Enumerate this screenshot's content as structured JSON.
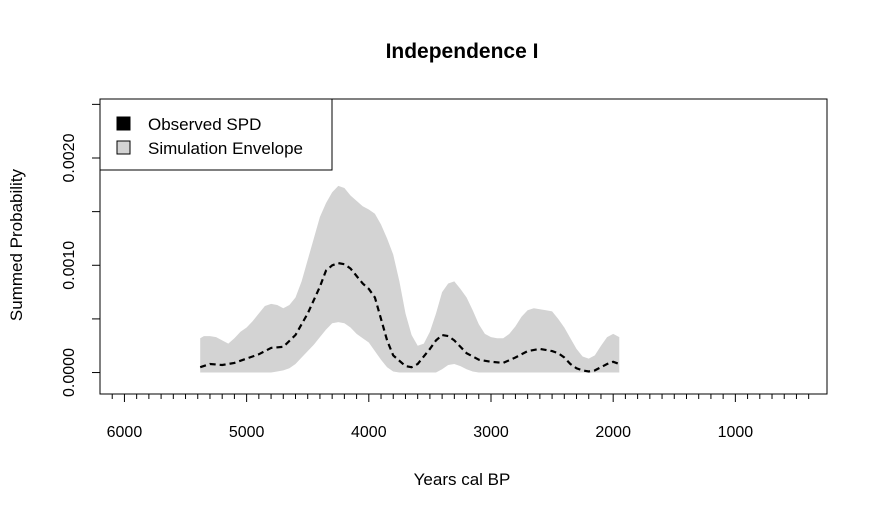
{
  "chart_data": {
    "type": "area",
    "title": "Independence I",
    "xlabel": "Years cal BP",
    "ylabel": "Summed Probability",
    "x_reversed": true,
    "xlim": [
      6200,
      250
    ],
    "ylim": [
      -0.0002,
      0.00255
    ],
    "x_major_ticks": [
      6000,
      5000,
      4000,
      3000,
      2000,
      1000
    ],
    "x_major_tick_labels": [
      "6000",
      "5000",
      "4000",
      "3000",
      "2000",
      "1000"
    ],
    "x_minor_ticks": [
      6100,
      5900,
      5800,
      5700,
      5600,
      5500,
      5400,
      5300,
      5200,
      5100,
      4900,
      4800,
      4700,
      4600,
      4500,
      4400,
      4300,
      4200,
      4100,
      3900,
      3800,
      3700,
      3600,
      3500,
      3400,
      3300,
      3200,
      3100,
      2900,
      2800,
      2700,
      2600,
      2500,
      2400,
      2300,
      2200,
      2100,
      1900,
      1800,
      1700,
      1600,
      1500,
      1400,
      1300,
      1200,
      1100,
      900,
      800,
      700,
      600,
      500,
      400
    ],
    "y_ticks": [
      0,
      0.0005,
      0.001,
      0.0015,
      0.002,
      0.0025
    ],
    "y_tick_labels": [
      "0.0000",
      "",
      "0.0010",
      "",
      "0.0020",
      ""
    ],
    "grid": false,
    "legend": {
      "position": "top-left",
      "entries": [
        {
          "label": "Observed SPD",
          "color": "#000000"
        },
        {
          "label": "Simulation Envelope",
          "color": "#d3d3d3"
        }
      ]
    },
    "series": [
      {
        "name": "Observed SPD",
        "style": "dashed",
        "color": "#000000",
        "x": [
          5380,
          5300,
          5200,
          5100,
          5000,
          4900,
          4800,
          4700,
          4600,
          4500,
          4400,
          4350,
          4300,
          4250,
          4200,
          4150,
          4100,
          4050,
          4000,
          3950,
          3900,
          3850,
          3800,
          3700,
          3650,
          3600,
          3500,
          3450,
          3400,
          3350,
          3300,
          3250,
          3200,
          3100,
          3000,
          2900,
          2800,
          2700,
          2600,
          2500,
          2450,
          2400,
          2350,
          2300,
          2250,
          2200,
          2150,
          2100,
          2050,
          2000,
          1950
        ],
        "y": [
          5e-05,
          8e-05,
          7e-05,
          9e-05,
          0.00013,
          0.00017,
          0.00023,
          0.00024,
          0.00035,
          0.00055,
          0.0008,
          0.00095,
          0.001,
          0.00102,
          0.00101,
          0.00097,
          0.0009,
          0.00083,
          0.00078,
          0.0007,
          0.0005,
          0.0003,
          0.00016,
          6e-05,
          5e-05,
          8e-05,
          0.00022,
          0.0003,
          0.00035,
          0.00034,
          0.0003,
          0.00024,
          0.00018,
          0.00012,
          0.0001,
          9e-05,
          0.00014,
          0.0002,
          0.00022,
          0.0002,
          0.00018,
          0.00014,
          8e-05,
          4e-05,
          2e-05,
          1e-05,
          2e-05,
          5e-05,
          8e-05,
          0.0001,
          8e-05
        ]
      },
      {
        "name": "Simulation Envelope",
        "style": "band",
        "color": "#d3d3d3",
        "x": [
          5380,
          5350,
          5300,
          5250,
          5200,
          5150,
          5100,
          5050,
          5000,
          4950,
          4900,
          4850,
          4800,
          4750,
          4700,
          4650,
          4600,
          4550,
          4500,
          4450,
          4400,
          4350,
          4300,
          4250,
          4200,
          4150,
          4100,
          4050,
          4000,
          3950,
          3900,
          3850,
          3800,
          3750,
          3700,
          3650,
          3600,
          3550,
          3500,
          3450,
          3400,
          3350,
          3300,
          3250,
          3200,
          3150,
          3100,
          3050,
          3000,
          2950,
          2900,
          2850,
          2800,
          2750,
          2700,
          2650,
          2600,
          2550,
          2500,
          2450,
          2400,
          2350,
          2300,
          2250,
          2200,
          2150,
          2100,
          2050,
          2000,
          1950
        ],
        "upper": [
          0.00032,
          0.00034,
          0.00034,
          0.00033,
          0.0003,
          0.00027,
          0.00032,
          0.00038,
          0.00042,
          0.00048,
          0.00055,
          0.00062,
          0.00064,
          0.00063,
          0.0006,
          0.00063,
          0.0007,
          0.00085,
          0.00105,
          0.00125,
          0.00145,
          0.00158,
          0.00168,
          0.00174,
          0.00172,
          0.00165,
          0.0016,
          0.00155,
          0.00152,
          0.00148,
          0.00138,
          0.00125,
          0.0011,
          0.00085,
          0.00055,
          0.00035,
          0.00025,
          0.00027,
          0.00038,
          0.00055,
          0.00075,
          0.00083,
          0.00085,
          0.00078,
          0.0007,
          0.00058,
          0.00045,
          0.00036,
          0.00033,
          0.00032,
          0.00032,
          0.00036,
          0.00043,
          0.00052,
          0.00058,
          0.0006,
          0.00059,
          0.00058,
          0.00057,
          0.0005,
          0.00042,
          0.00032,
          0.00022,
          0.00015,
          0.00013,
          0.00016,
          0.00025,
          0.00033,
          0.00036,
          0.00033
        ],
        "lower": [
          0.0,
          0.0,
          0.0,
          0.0,
          0.0,
          0.0,
          0.0,
          0.0,
          0.0,
          0.0,
          0.0,
          0.0,
          0.0,
          1e-05,
          2e-05,
          4e-05,
          8e-05,
          0.00014,
          0.0002,
          0.00026,
          0.00033,
          0.0004,
          0.00046,
          0.00047,
          0.00046,
          0.00042,
          0.00036,
          0.00032,
          0.00028,
          0.0002,
          0.00012,
          5e-05,
          1e-05,
          0.0,
          0.0,
          0.0,
          0.0,
          0.0,
          0.0,
          0.0,
          3e-05,
          7e-05,
          8e-05,
          6e-05,
          3e-05,
          1e-05,
          0.0,
          0.0,
          0.0,
          0.0,
          0.0,
          0.0,
          0.0,
          0.0,
          0.0,
          0.0,
          0.0,
          0.0,
          0.0,
          0.0,
          0.0,
          0.0,
          0.0,
          0.0,
          0.0,
          0.0,
          0.0,
          0.0,
          0.0,
          0.0
        ]
      }
    ]
  }
}
